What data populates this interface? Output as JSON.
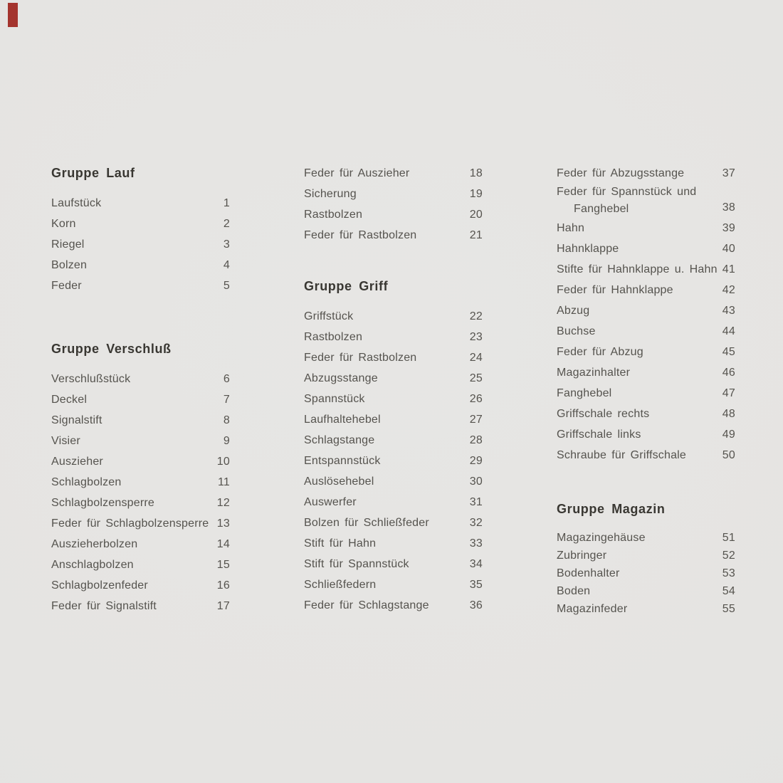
{
  "page": {
    "background": "#e5e4e2",
    "body_text_color": "#55534e",
    "heading_text_color": "#393732",
    "corner_mark_color": "#a4342e"
  },
  "columns": [
    {
      "blocks": [
        {
          "type": "heading",
          "text": "Gruppe Lauf"
        },
        {
          "type": "items",
          "rows": [
            {
              "label": "Laufstück",
              "num": "1"
            },
            {
              "label": "Korn",
              "num": "2"
            },
            {
              "label": "Riegel",
              "num": "3"
            },
            {
              "label": "Bolzen",
              "num": "4"
            },
            {
              "label": "Feder",
              "num": "5"
            }
          ]
        },
        {
          "type": "heading",
          "text": "Gruppe Verschluß"
        },
        {
          "type": "items",
          "rows": [
            {
              "label": "Verschlußstück",
              "num": "6"
            },
            {
              "label": "Deckel",
              "num": "7"
            },
            {
              "label": "Signalstift",
              "num": "8"
            },
            {
              "label": "Visier",
              "num": "9"
            },
            {
              "label": "Auszieher",
              "num": "10"
            },
            {
              "label": "Schlagbolzen",
              "num": "11"
            },
            {
              "label": "Schlagbolzensperre",
              "num": "12"
            },
            {
              "label": "Feder für Schlagbolzensperre",
              "num": "13"
            },
            {
              "label": "Auszieherbolzen",
              "num": "14"
            },
            {
              "label": "Anschlagbolzen",
              "num": "15"
            },
            {
              "label": "Schlagbolzenfeder",
              "num": "16"
            },
            {
              "label": "Feder für Signalstift",
              "num": "17"
            }
          ]
        }
      ]
    },
    {
      "blocks": [
        {
          "type": "items",
          "rows": [
            {
              "label": "Feder für Auszieher",
              "num": "18"
            },
            {
              "label": "Sicherung",
              "num": "19"
            },
            {
              "label": "Rastbolzen",
              "num": "20"
            },
            {
              "label": "Feder für Rastbolzen",
              "num": "21"
            }
          ]
        },
        {
          "type": "heading",
          "text": "Gruppe Griff"
        },
        {
          "type": "items",
          "rows": [
            {
              "label": "Griffstück",
              "num": "22"
            },
            {
              "label": "Rastbolzen",
              "num": "23"
            },
            {
              "label": "Feder für Rastbolzen",
              "num": "24"
            },
            {
              "label": "Abzugsstange",
              "num": "25"
            },
            {
              "label": "Spannstück",
              "num": "26"
            },
            {
              "label": "Laufhaltehebel",
              "num": "27"
            },
            {
              "label": "Schlagstange",
              "num": "28"
            },
            {
              "label": "Entspannstück",
              "num": "29"
            },
            {
              "label": "Auslösehebel",
              "num": "30"
            },
            {
              "label": "Auswerfer",
              "num": "31"
            },
            {
              "label": "Bolzen für Schließfeder",
              "num": "32"
            },
            {
              "label": "Stift für Hahn",
              "num": "33"
            },
            {
              "label": "Stift für Spannstück",
              "num": "34"
            },
            {
              "label": "Schließfedern",
              "num": "35"
            },
            {
              "label": "Feder für Schlagstange",
              "num": "36"
            }
          ]
        }
      ]
    },
    {
      "blocks": [
        {
          "type": "items",
          "rows": [
            {
              "label": "Feder für Abzugsstange",
              "num": "37"
            },
            {
              "label": "Feder für Spannstück und",
              "label2": "Fanghebel",
              "num": "38"
            },
            {
              "label": "Hahn",
              "num": "39"
            },
            {
              "label": "Hahnklappe",
              "num": "40"
            },
            {
              "label": "Stifte für Hahnklappe u. Hahn",
              "num": "41"
            },
            {
              "label": "Feder für Hahnklappe",
              "num": "42"
            },
            {
              "label": "Abzug",
              "num": "43"
            },
            {
              "label": "Buchse",
              "num": "44"
            },
            {
              "label": "Feder für Abzug",
              "num": "45"
            },
            {
              "label": "Magazinhalter",
              "num": "46"
            },
            {
              "label": "Fanghebel",
              "num": "47"
            },
            {
              "label": "Griffschale rechts",
              "num": "48"
            },
            {
              "label": "Griffschale links",
              "num": "49"
            },
            {
              "label": "Schraube für Griffschale",
              "num": "50"
            }
          ]
        },
        {
          "type": "heading",
          "text": "Gruppe Magazin"
        },
        {
          "type": "items",
          "tight": true,
          "rows": [
            {
              "label": "Magazingehäuse",
              "num": "51"
            },
            {
              "label": "Zubringer",
              "num": "52"
            },
            {
              "label": "Bodenhalter",
              "num": "53"
            },
            {
              "label": "Boden",
              "num": "54"
            },
            {
              "label": "Magazinfeder",
              "num": "55"
            }
          ]
        }
      ]
    }
  ]
}
